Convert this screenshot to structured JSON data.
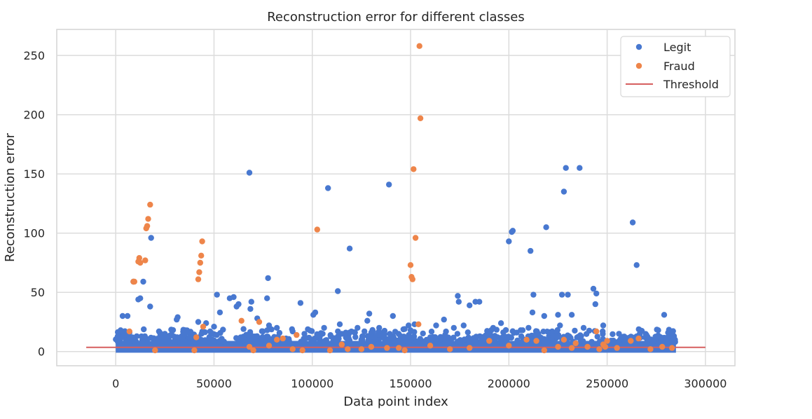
{
  "chart_data": {
    "type": "scatter",
    "title": "Reconstruction error for different classes",
    "xlabel": "Data point index",
    "ylabel": "Reconstruction error",
    "xlim": [
      -30000,
      315000
    ],
    "ylim": [
      -12,
      272
    ],
    "xticks": [
      0,
      50000,
      100000,
      150000,
      200000,
      250000,
      300000
    ],
    "yticks": [
      0,
      50,
      100,
      150,
      200,
      250
    ],
    "xtick_labels": [
      "0",
      "50000",
      "100000",
      "150000",
      "200000",
      "250000",
      "300000"
    ],
    "ytick_labels": [
      "0",
      "50",
      "100",
      "150",
      "200",
      "250"
    ],
    "grid": true,
    "legend_position": "top-right",
    "legend": [
      "Legit",
      "Fraud",
      "Threshold"
    ],
    "colors": {
      "legit": "#4878d0",
      "fraud": "#ee854a",
      "threshold": "#d65f5f",
      "grid": "#dcdcdc",
      "frame": "#d4d4d4"
    },
    "band_note": "Dense cluster of Legit points spans x from 0 to 285000 with errors between 0 and about 10.",
    "series": [
      {
        "name": "Legit",
        "points": [
          [
            1500,
            8
          ],
          [
            2500,
            18
          ],
          [
            3500,
            30
          ],
          [
            6000,
            30
          ],
          [
            7000,
            16
          ],
          [
            9000,
            59
          ],
          [
            11500,
            44
          ],
          [
            12500,
            45
          ],
          [
            14000,
            59
          ],
          [
            17500,
            38
          ],
          [
            18000,
            96
          ],
          [
            22000,
            17
          ],
          [
            25000,
            15
          ],
          [
            31000,
            27
          ],
          [
            31500,
            29
          ],
          [
            35000,
            14
          ],
          [
            42000,
            25
          ],
          [
            46000,
            24
          ],
          [
            48000,
            17
          ],
          [
            50000,
            21
          ],
          [
            51500,
            48
          ],
          [
            53000,
            33
          ],
          [
            58000,
            45
          ],
          [
            60000,
            46
          ],
          [
            61500,
            38
          ],
          [
            62500,
            40
          ],
          [
            65000,
            19
          ],
          [
            68000,
            151
          ],
          [
            68500,
            36
          ],
          [
            69000,
            42
          ],
          [
            72000,
            28
          ],
          [
            77000,
            45
          ],
          [
            77500,
            62
          ],
          [
            78000,
            22
          ],
          [
            82000,
            20
          ],
          [
            90000,
            17
          ],
          [
            94000,
            41
          ],
          [
            96000,
            15
          ],
          [
            100500,
            31
          ],
          [
            101500,
            33
          ],
          [
            106000,
            20
          ],
          [
            108000,
            138
          ],
          [
            113000,
            51
          ],
          [
            114000,
            23
          ],
          [
            117000,
            16
          ],
          [
            119000,
            87
          ],
          [
            123000,
            20
          ],
          [
            128000,
            26
          ],
          [
            129000,
            32
          ],
          [
            134000,
            20
          ],
          [
            139000,
            141
          ],
          [
            141000,
            30
          ],
          [
            147000,
            19
          ],
          [
            149000,
            22
          ],
          [
            150000,
            18
          ],
          [
            152000,
            23
          ],
          [
            163000,
            22
          ],
          [
            167000,
            27
          ],
          [
            172000,
            20
          ],
          [
            174000,
            47
          ],
          [
            174500,
            42
          ],
          [
            177000,
            22
          ],
          [
            180000,
            39
          ],
          [
            183000,
            42
          ],
          [
            185000,
            42
          ],
          [
            192000,
            20
          ],
          [
            196000,
            24
          ],
          [
            200000,
            93
          ],
          [
            201500,
            101
          ],
          [
            202000,
            102
          ],
          [
            206000,
            18
          ],
          [
            207000,
            18
          ],
          [
            210000,
            20
          ],
          [
            211000,
            85
          ],
          [
            212000,
            33
          ],
          [
            212500,
            48
          ],
          [
            215000,
            14
          ],
          [
            218000,
            30
          ],
          [
            219000,
            105
          ],
          [
            222000,
            17
          ],
          [
            225000,
            31
          ],
          [
            226000,
            22
          ],
          [
            227000,
            48
          ],
          [
            228000,
            135
          ],
          [
            229000,
            155
          ],
          [
            230000,
            48
          ],
          [
            232000,
            31
          ],
          [
            236000,
            155
          ],
          [
            238000,
            20
          ],
          [
            243000,
            53
          ],
          [
            244000,
            40
          ],
          [
            244500,
            49
          ],
          [
            248000,
            22
          ],
          [
            256000,
            15
          ],
          [
            262000,
            11
          ],
          [
            263000,
            109
          ],
          [
            265000,
            73
          ],
          [
            270000,
            14
          ],
          [
            275000,
            12
          ],
          [
            279000,
            31
          ],
          [
            281000,
            16
          ],
          [
            284000,
            13
          ]
        ]
      },
      {
        "name": "Fraud",
        "points": [
          [
            7000,
            17
          ],
          [
            9000,
            59
          ],
          [
            9500,
            59
          ],
          [
            11500,
            76
          ],
          [
            12000,
            79
          ],
          [
            12500,
            75
          ],
          [
            15000,
            77
          ],
          [
            15500,
            104
          ],
          [
            16000,
            106
          ],
          [
            16500,
            112
          ],
          [
            17500,
            124
          ],
          [
            20000,
            1
          ],
          [
            40000,
            1
          ],
          [
            42000,
            61
          ],
          [
            42500,
            67
          ],
          [
            43000,
            75
          ],
          [
            43500,
            81
          ],
          [
            44000,
            93
          ],
          [
            44500,
            21
          ],
          [
            41000,
            12
          ],
          [
            64000,
            26
          ],
          [
            68000,
            4
          ],
          [
            70000,
            1
          ],
          [
            73000,
            25
          ],
          [
            78000,
            5
          ],
          [
            82000,
            10
          ],
          [
            85000,
            11
          ],
          [
            90000,
            2
          ],
          [
            92000,
            14
          ],
          [
            95000,
            1
          ],
          [
            102500,
            103
          ],
          [
            109000,
            1
          ],
          [
            115000,
            6
          ],
          [
            118000,
            2
          ],
          [
            125000,
            2
          ],
          [
            130000,
            4
          ],
          [
            138000,
            3
          ],
          [
            144000,
            3
          ],
          [
            150000,
            73
          ],
          [
            150500,
            63
          ],
          [
            151000,
            61
          ],
          [
            151500,
            154
          ],
          [
            152500,
            96
          ],
          [
            154500,
            258
          ],
          [
            155000,
            197
          ],
          [
            154000,
            23
          ],
          [
            147000,
            1
          ],
          [
            160000,
            5
          ],
          [
            170000,
            2
          ],
          [
            180000,
            3
          ],
          [
            190000,
            9
          ],
          [
            200000,
            5
          ],
          [
            209000,
            10
          ],
          [
            214000,
            9
          ],
          [
            218000,
            1
          ],
          [
            225000,
            4
          ],
          [
            228000,
            10
          ],
          [
            232000,
            3
          ],
          [
            234000,
            7
          ],
          [
            240000,
            4
          ],
          [
            244500,
            17
          ],
          [
            246000,
            2
          ],
          [
            248000,
            6
          ],
          [
            249000,
            4
          ],
          [
            250000,
            9
          ],
          [
            255000,
            3
          ],
          [
            262000,
            9
          ],
          [
            266000,
            11
          ],
          [
            272000,
            2
          ],
          [
            278000,
            4
          ],
          [
            283000,
            3
          ]
        ]
      },
      {
        "name": "Threshold",
        "line": {
          "x": [
            -15000,
            300000
          ],
          "y": 3.5
        }
      }
    ]
  }
}
